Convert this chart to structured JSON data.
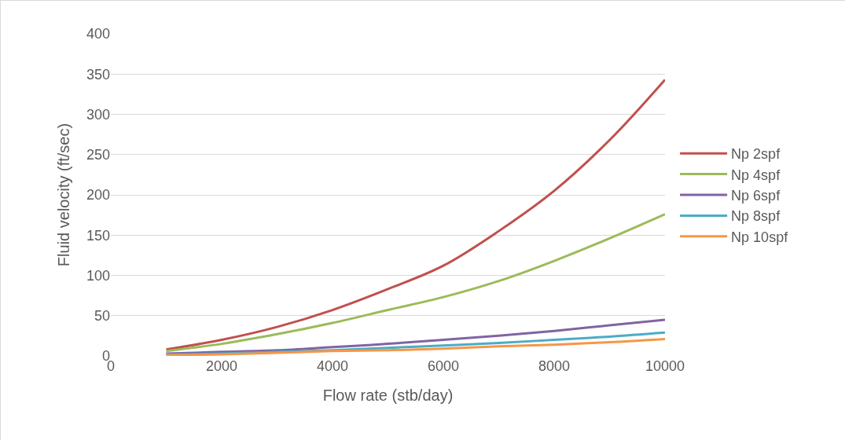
{
  "chart_data": {
    "type": "line",
    "xlabel": "Flow rate (stb/day)",
    "ylabel": "Fluid velocity (ft/sec)",
    "x": [
      1000,
      2000,
      3000,
      4000,
      5000,
      6000,
      7000,
      8000,
      9000,
      10000
    ],
    "xlim": [
      0,
      10000
    ],
    "xticks": [
      0,
      2000,
      4000,
      6000,
      8000,
      10000
    ],
    "ylim": [
      0,
      400
    ],
    "yticks": [
      0,
      50,
      100,
      150,
      200,
      250,
      300,
      350,
      400
    ],
    "grid": "y",
    "legend": "right",
    "marker": "none",
    "line_style": "solid",
    "series": [
      {
        "name": "Np 2spf",
        "color": "#c0504d",
        "values": [
          8,
          20,
          36,
          57,
          83,
          112,
          155,
          205,
          268,
          343
        ]
      },
      {
        "name": "Np 4spf",
        "color": "#9bbb59",
        "values": [
          6,
          15,
          27,
          41,
          57,
          73,
          93,
          118,
          146,
          176
        ]
      },
      {
        "name": "Np 6spf",
        "color": "#8064a2",
        "values": [
          3,
          5,
          7,
          11,
          15,
          20,
          25,
          31,
          38,
          45
        ]
      },
      {
        "name": "Np 8spf",
        "color": "#4bacc6",
        "values": [
          2,
          3,
          5,
          7,
          10,
          13,
          16,
          20,
          24,
          29
        ]
      },
      {
        "name": "Np 10spf",
        "color": "#f79646",
        "values": [
          1,
          2,
          4,
          6,
          7,
          9,
          12,
          14,
          17,
          21
        ]
      }
    ]
  }
}
